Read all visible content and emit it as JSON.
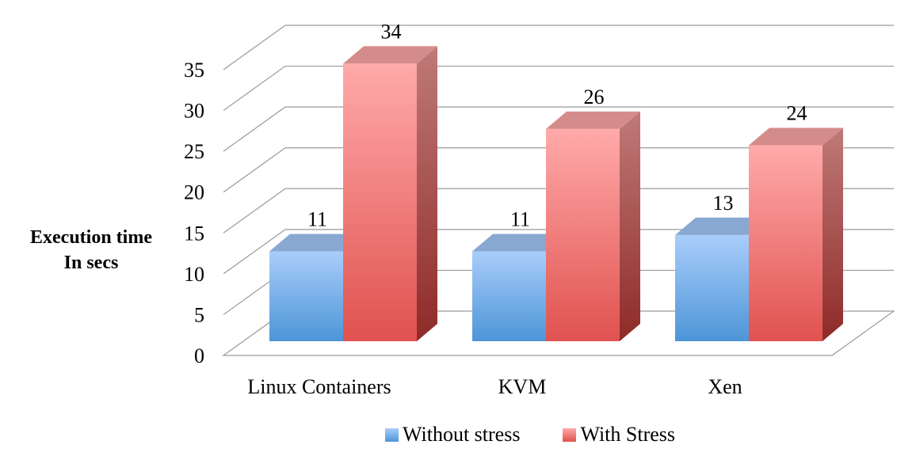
{
  "chart_data": {
    "type": "bar",
    "title": "",
    "xlabel": "",
    "ylabel_line1": "Execution time",
    "ylabel_line2": "In secs",
    "categories": [
      "Linux Containers",
      "KVM",
      "Xen"
    ],
    "series": [
      {
        "name": "Without stress",
        "values": [
          11,
          11,
          13
        ],
        "labels": [
          "11",
          "11",
          "13"
        ],
        "color": "#6fa8e6"
      },
      {
        "name": "With Stress",
        "values": [
          34,
          26,
          24
        ],
        "labels": [
          "34",
          "26",
          "24"
        ],
        "color": "#e86a6a"
      }
    ],
    "ylim": [
      0,
      35
    ],
    "yticks": [
      "0",
      "5",
      "10",
      "15",
      "20",
      "25",
      "30",
      "35"
    ],
    "grid": true,
    "legend_position": "bottom",
    "style": "3d-column"
  }
}
